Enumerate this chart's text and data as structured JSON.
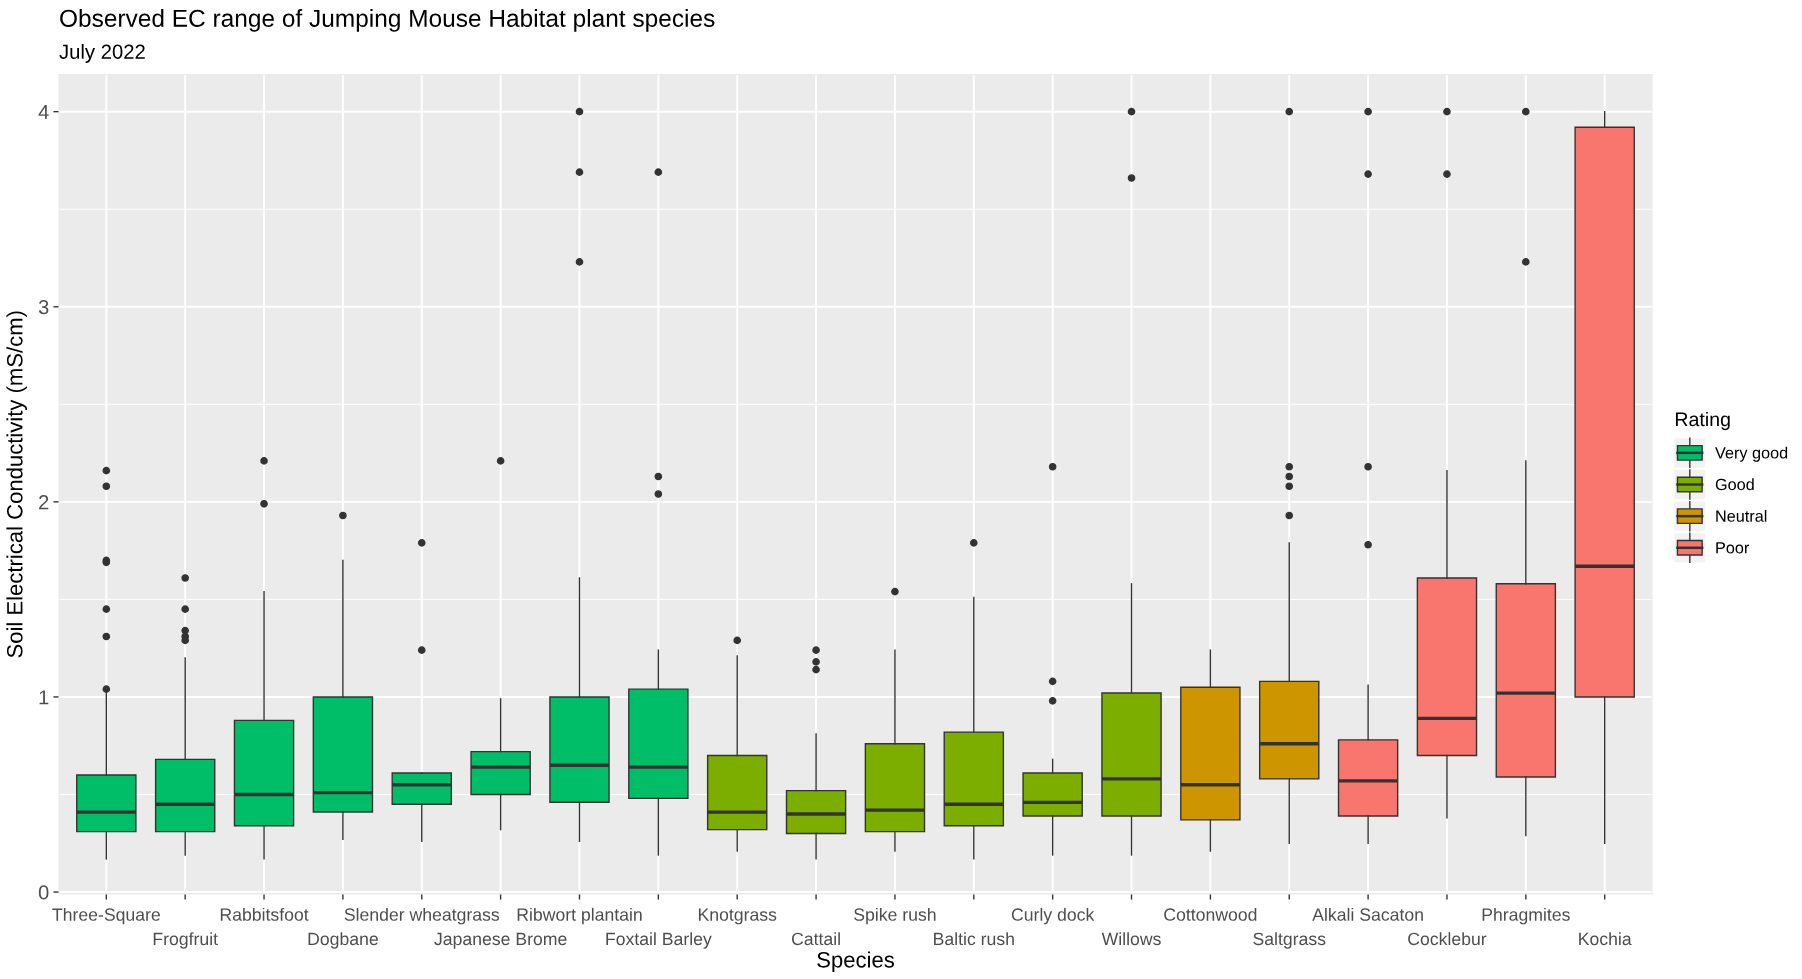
{
  "chart_data": {
    "type": "box",
    "title": "Observed EC range of Jumping Mouse Habitat plant species",
    "subtitle": "July 2022",
    "xlabel": "Species",
    "ylabel": "Soil Electrical Conductivity (mS/cm)",
    "legend_title": "Rating",
    "categories": [
      "Three-Square",
      "Frogfruit",
      "Rabbitsfoot",
      "Dogbane",
      "Slender wheatgrass",
      "Japanese Brome",
      "Ribwort plantain",
      "Foxtail Barley",
      "Knotgrass",
      "Cattail",
      "Spike rush",
      "Baltic rush",
      "Curly dock",
      "Willows",
      "Cottonwood",
      "Saltgrass",
      "Alkali Sacaton",
      "Cocklebur",
      "Phragmites",
      "Kochia"
    ],
    "series": [
      {
        "name": "Very good",
        "color": "#00be67",
        "boxes": [
          {
            "low": 0.17,
            "q1": 0.31,
            "median": 0.41,
            "q3": 0.6,
            "high": 1.02,
            "outliers": [
              1.04,
              1.31,
              1.45,
              1.69,
              1.7,
              2.08,
              2.16
            ]
          },
          {
            "low": 0.19,
            "q1": 0.31,
            "median": 0.45,
            "q3": 0.68,
            "high": 1.2,
            "outliers": [
              1.29,
              1.31,
              1.34,
              1.45,
              1.61
            ]
          },
          {
            "low": 0.17,
            "q1": 0.34,
            "median": 0.5,
            "q3": 0.88,
            "high": 1.54,
            "outliers": [
              1.99,
              2.21
            ]
          },
          {
            "low": 0.27,
            "q1": 0.41,
            "median": 0.51,
            "q3": 1.0,
            "high": 1.7,
            "outliers": [
              1.93
            ]
          },
          {
            "low": 0.26,
            "q1": 0.45,
            "median": 0.55,
            "q3": 0.61,
            "high": 0.61,
            "outliers": [
              1.24,
              1.79
            ]
          },
          {
            "low": 0.32,
            "q1": 0.5,
            "median": 0.64,
            "q3": 0.72,
            "high": 0.99,
            "outliers": [
              2.21
            ]
          },
          {
            "low": 0.26,
            "q1": 0.46,
            "median": 0.65,
            "q3": 1.0,
            "high": 1.61,
            "outliers": [
              3.23,
              3.69,
              4.0
            ]
          },
          {
            "low": 0.19,
            "q1": 0.48,
            "median": 0.64,
            "q3": 1.04,
            "high": 1.24,
            "outliers": [
              2.04,
              2.13,
              3.69
            ]
          },
          null,
          null,
          null,
          null,
          null,
          null,
          null,
          null,
          null,
          null,
          null,
          null
        ]
      },
      {
        "name": "Good",
        "color": "#7cae00",
        "boxes": [
          null,
          null,
          null,
          null,
          null,
          null,
          null,
          null,
          {
            "low": 0.21,
            "q1": 0.32,
            "median": 0.41,
            "q3": 0.7,
            "high": 1.21,
            "outliers": [
              1.29
            ]
          },
          {
            "low": 0.17,
            "q1": 0.3,
            "median": 0.4,
            "q3": 0.52,
            "high": 0.81,
            "outliers": [
              1.14,
              1.18,
              1.24
            ]
          },
          {
            "low": 0.21,
            "q1": 0.31,
            "median": 0.42,
            "q3": 0.76,
            "high": 1.24,
            "outliers": [
              1.54
            ]
          },
          {
            "low": 0.17,
            "q1": 0.34,
            "median": 0.45,
            "q3": 0.82,
            "high": 1.51,
            "outliers": [
              1.79
            ]
          },
          {
            "low": 0.19,
            "q1": 0.39,
            "median": 0.46,
            "q3": 0.61,
            "high": 0.68,
            "outliers": [
              0.98,
              1.08,
              2.18
            ]
          },
          {
            "low": 0.19,
            "q1": 0.39,
            "median": 0.58,
            "q3": 1.02,
            "high": 1.58,
            "outliers": [
              3.66,
              4.0
            ]
          },
          null,
          null,
          null,
          null,
          null,
          null
        ]
      },
      {
        "name": "Neutral",
        "color": "#cd9600",
        "boxes": [
          null,
          null,
          null,
          null,
          null,
          null,
          null,
          null,
          null,
          null,
          null,
          null,
          null,
          null,
          {
            "low": 0.21,
            "q1": 0.37,
            "median": 0.55,
            "q3": 1.05,
            "high": 1.24
          },
          {
            "low": 0.25,
            "q1": 0.58,
            "median": 0.76,
            "q3": 1.08,
            "high": 1.79,
            "outliers": [
              1.93,
              2.08,
              2.13,
              2.18,
              4.0
            ]
          },
          null,
          null,
          null,
          null
        ]
      },
      {
        "name": "Poor",
        "color": "#f8766d",
        "boxes": [
          null,
          null,
          null,
          null,
          null,
          null,
          null,
          null,
          null,
          null,
          null,
          null,
          null,
          null,
          null,
          null,
          {
            "low": 0.25,
            "q1": 0.39,
            "median": 0.57,
            "q3": 0.78,
            "high": 1.06,
            "outliers": [
              1.78,
              2.18,
              3.68,
              4.0
            ]
          },
          {
            "low": 0.38,
            "q1": 0.7,
            "median": 0.89,
            "q3": 1.61,
            "high": 2.16,
            "outliers": [
              3.68,
              4.0
            ]
          },
          {
            "low": 0.29,
            "q1": 0.59,
            "median": 1.02,
            "q3": 1.58,
            "high": 2.21,
            "outliers": [
              3.23,
              4.0
            ]
          },
          {
            "low": 0.25,
            "q1": 1.0,
            "median": 1.67,
            "q3": 3.92,
            "high": 4.0
          }
        ]
      }
    ],
    "ylim": [
      -0.01,
      4.19
    ],
    "yticks": [
      0,
      1,
      2,
      3,
      4
    ],
    "grid": true,
    "legend": "right"
  }
}
